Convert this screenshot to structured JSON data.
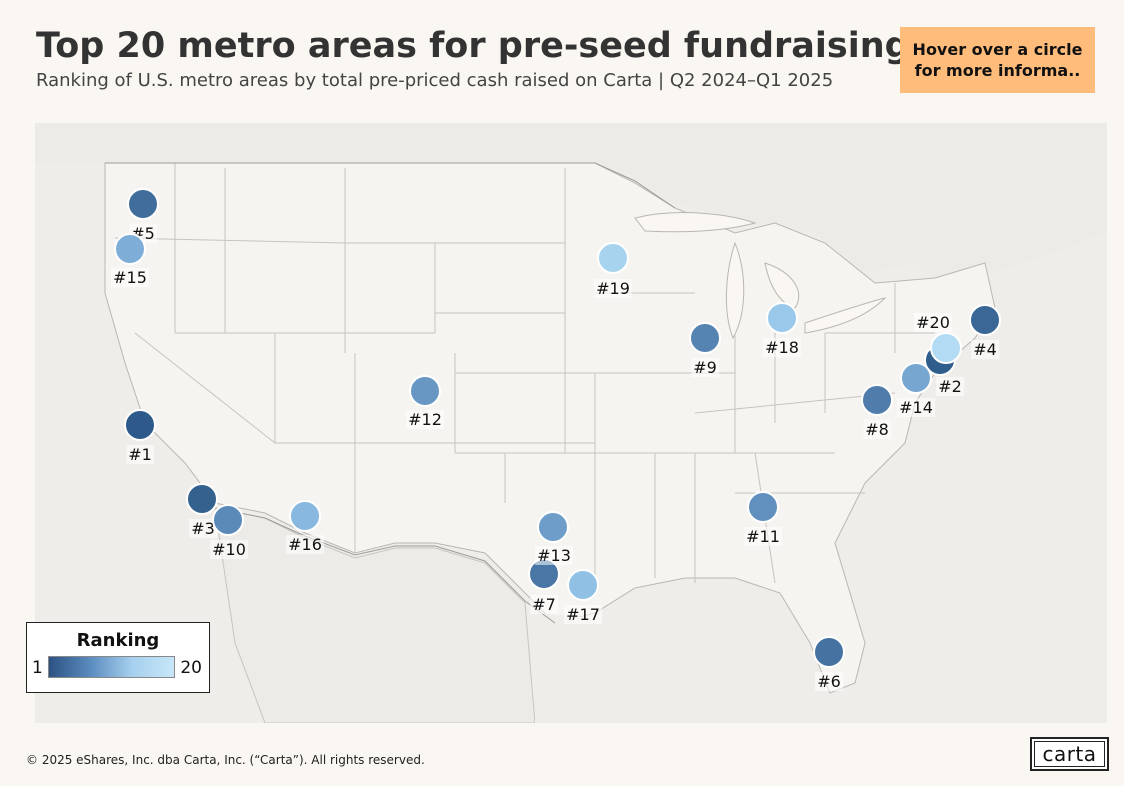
{
  "title": "Top 20 metro areas for pre-seed fundraising",
  "subtitle": "Ranking of U.S. metro areas by total pre-priced cash raised on Carta | Q2 2024–Q1 2025",
  "hover_note": "Hover over a circle for more informa..",
  "legend": {
    "title": "Ranking",
    "min_label": "1",
    "max_label": "20",
    "colors": [
      "#2c5282",
      "#5b8cbf",
      "#a6d0ee",
      "#c8e6f8"
    ]
  },
  "footer": {
    "copyright": "© 2025 eShares, Inc. dba Carta, Inc. (“Carta”). All rights reserved.",
    "logo_text": "carta"
  },
  "markers": [
    {
      "rank": 1,
      "label": "#1",
      "color": "#2d5a8a"
    },
    {
      "rank": 2,
      "label": "#2",
      "color": "#2f5d8c"
    },
    {
      "rank": 3,
      "label": "#3",
      "color": "#35618f"
    },
    {
      "rank": 4,
      "label": "#4",
      "color": "#3a6796"
    },
    {
      "rank": 5,
      "label": "#5",
      "color": "#406d9c"
    },
    {
      "rank": 6,
      "label": "#6",
      "color": "#4672a1"
    },
    {
      "rank": 7,
      "label": "#7",
      "color": "#4a76a6"
    },
    {
      "rank": 8,
      "label": "#8",
      "color": "#507cab"
    },
    {
      "rank": 9,
      "label": "#9",
      "color": "#5583b2"
    },
    {
      "rank": 10,
      "label": "#10",
      "color": "#5b89b8"
    },
    {
      "rank": 11,
      "label": "#11",
      "color": "#6290be"
    },
    {
      "rank": 12,
      "label": "#12",
      "color": "#6897c4"
    },
    {
      "rank": 13,
      "label": "#13",
      "color": "#6e9dc9"
    },
    {
      "rank": 14,
      "label": "#14",
      "color": "#77a6d1"
    },
    {
      "rank": 15,
      "label": "#15",
      "color": "#7eaed7"
    },
    {
      "rank": 16,
      "label": "#16",
      "color": "#88b8df"
    },
    {
      "rank": 17,
      "label": "#17",
      "color": "#91c0e5"
    },
    {
      "rank": 18,
      "label": "#18",
      "color": "#9ac8ea"
    },
    {
      "rank": 19,
      "label": "#19",
      "color": "#a8d3ef"
    },
    {
      "rank": 20,
      "label": "#20",
      "color": "#b3dbf3"
    }
  ]
}
